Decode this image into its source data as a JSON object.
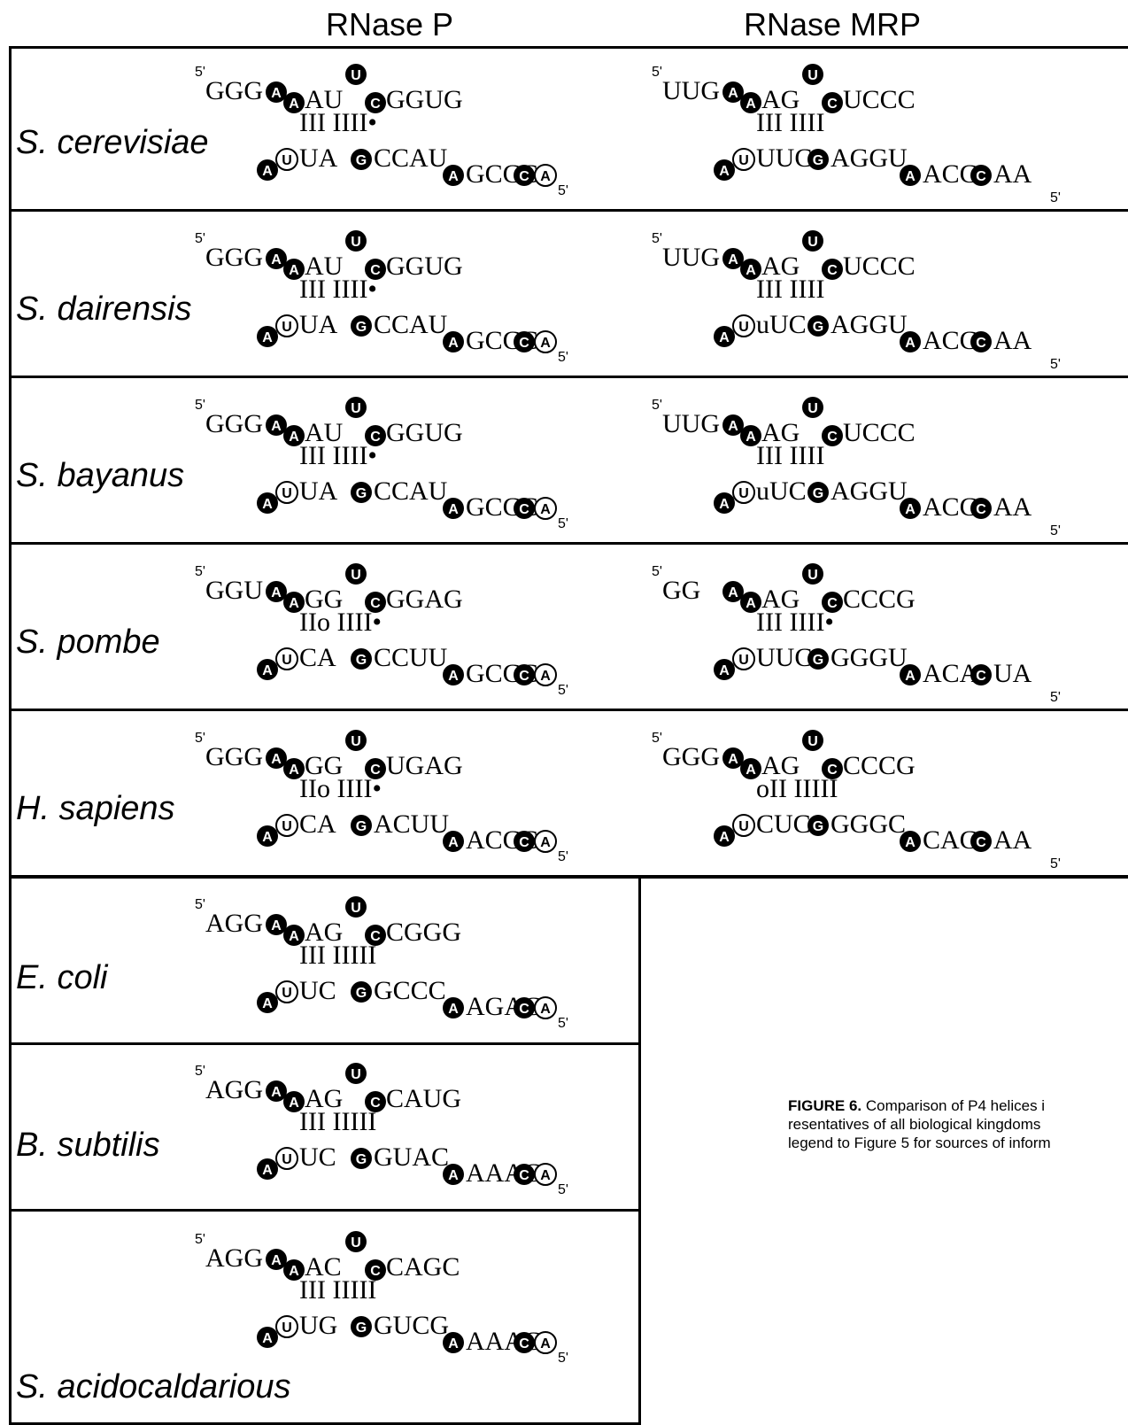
{
  "headers": {
    "left": "RNase P",
    "right": "RNase MRP"
  },
  "caption": {
    "label": "FIGURE 6.",
    "line1": "Comparison of P4 helices i",
    "line2": "resentatives of all biological kingdoms",
    "line3": "legend to Figure 5 for sources of inform"
  },
  "rows": [
    {
      "species": "S. cerevisiae",
      "p": {
        "prime5": "5'",
        "lead": "GGG",
        "top": "AU",
        "topTail": "GGUG",
        "bottom": "UA",
        "bottomMid": "CCAU",
        "tail": "GCCC",
        "end": "5'",
        "pairs": "III IIII•"
      },
      "mrp": {
        "prime5": "5'",
        "lead": "UUG",
        "top": "AG",
        "topTail": "UCCC",
        "bottom": "UUC",
        "bottomMid": "AGGU",
        "tail": "ACC",
        "tailEnd": "AA",
        "end": "5'",
        "pairs": "III IIII"
      }
    },
    {
      "species": "S. dairensis",
      "p": {
        "prime5": "5'",
        "lead": "GGG",
        "top": "AU",
        "topTail": "GGUG",
        "bottom": "UA",
        "bottomMid": "CCAU",
        "tail": "GCCC",
        "end": "5'",
        "pairs": "III IIII•"
      },
      "mrp": {
        "prime5": "5'",
        "lead": "UUG",
        "top": "AG",
        "topTail": "UCCC",
        "bottom": "uUC",
        "bottomMid": "AGGU",
        "tail": "ACC",
        "tailEnd": "AA",
        "end": "5'",
        "pairs": "III IIII"
      }
    },
    {
      "species": "S. bayanus",
      "p": {
        "prime5": "5'",
        "lead": "GGG",
        "top": "AU",
        "topTail": "GGUG",
        "bottom": "UA",
        "bottomMid": "CCAU",
        "tail": "GCCC",
        "end": "5'",
        "pairs": "III IIII•"
      },
      "mrp": {
        "prime5": "5'",
        "lead": "UUG",
        "top": "AG",
        "topTail": "UCCC",
        "bottom": "uUC",
        "bottomMid": "AGGU",
        "tail": "ACC",
        "tailEnd": "AA",
        "end": "5'",
        "pairs": "III IIII"
      }
    },
    {
      "species": "S. pombe",
      "p": {
        "prime5": "5'",
        "lead": "GGU",
        "top": "GG",
        "topTail": "GGAG",
        "bottom": "CA",
        "bottomMid": "CCUU",
        "tail": "GCCC",
        "end": "5'",
        "pairs": "IIo IIII•"
      },
      "mrp": {
        "prime5": "5'",
        "lead": "GG",
        "top": "AG",
        "topTail": "CCCG",
        "bottom": "UUC",
        "bottomMid": "GGGU",
        "tail": "ACA",
        "tailEnd": "UA",
        "end": "5'",
        "pairs": "III IIII•"
      }
    },
    {
      "species": "H. sapiens",
      "p": {
        "prime5": "5'",
        "lead": "GGG",
        "top": "GG",
        "topTail": "UGAG",
        "bottom": "CA",
        "bottomMid": "ACUU",
        "tail": "ACCC",
        "end": "5'",
        "pairs": "IIo IIII•"
      },
      "mrp": {
        "prime5": "5'",
        "lead": "GGG",
        "top": "AG",
        "topTail": "CCCG",
        "bottom": "CUC",
        "bottomMid": "GGGC",
        "tail": "CAC",
        "tailEnd": "AA",
        "end": "5'",
        "pairs": "oII IIIII"
      }
    },
    {
      "species": "E. coli",
      "p": {
        "prime5": "5'",
        "lead": "AGG",
        "top": "AG",
        "topTail": "CGGG",
        "bottom": "UC",
        "bottomMid": "GCCC",
        "tail": "AGAC",
        "end": "5'",
        "pairs": "III IIIII"
      }
    },
    {
      "species": "B. subtilis",
      "p": {
        "prime5": "5'",
        "lead": "AGG",
        "top": "AG",
        "topTail": "CAUG",
        "bottom": "UC",
        "bottomMid": "GUAC",
        "tail": "AAAC",
        "end": "5'",
        "pairs": "III IIIII"
      }
    },
    {
      "species": "S. acidocaldarious",
      "p": {
        "prime5": "5'",
        "lead": "AGG",
        "top": "AC",
        "topTail": "CAGC",
        "bottom": "UG",
        "bottomMid": "GUCG",
        "tail": "AAAC",
        "end": "5'",
        "pairs": "III IIIII"
      }
    }
  ]
}
